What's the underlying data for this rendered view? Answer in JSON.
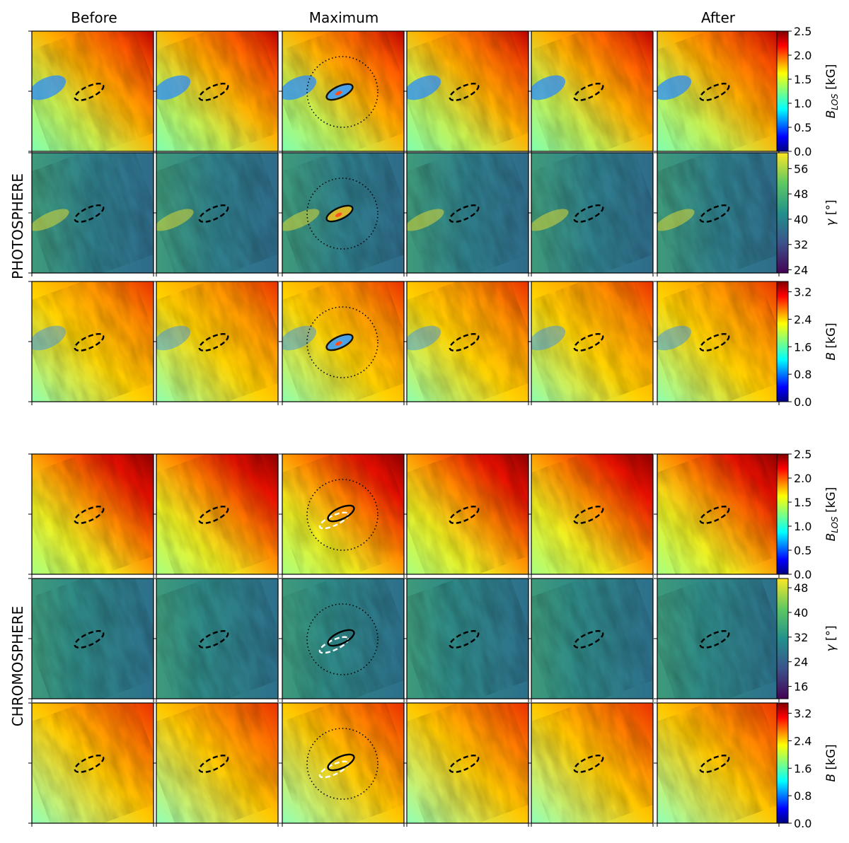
{
  "columns": {
    "before": "Before",
    "maximum": "Maximum",
    "after": "After"
  },
  "sections": [
    {
      "key": "photosphere",
      "label": "PHOTOSPHERE"
    },
    {
      "key": "chromosphere",
      "label": "CHROMOSPHERE"
    }
  ],
  "rows": [
    {
      "id": "photo-blos",
      "quantity": "B_LOS",
      "unit": "[kG]",
      "colormap": "jet",
      "ticks": [
        "0.0",
        "0.5",
        "1.0",
        "1.5",
        "2.0",
        "2.5"
      ],
      "range": [
        0,
        2.5
      ]
    },
    {
      "id": "photo-gamma",
      "quantity": "γ",
      "unit": "[°]",
      "colormap": "viridis",
      "ticks": [
        "24",
        "32",
        "40",
        "48",
        "56"
      ],
      "range": [
        23,
        61
      ]
    },
    {
      "id": "photo-b",
      "quantity": "B",
      "unit": "[kG]",
      "colormap": "jet",
      "ticks": [
        "0.0",
        "0.8",
        "1.6",
        "2.4",
        "3.2"
      ],
      "range": [
        0,
        3.5
      ]
    },
    {
      "id": "chromo-blos",
      "quantity": "B_LOS",
      "unit": "[kG]",
      "colormap": "jet",
      "ticks": [
        "0.0",
        "0.5",
        "1.0",
        "1.5",
        "2.0",
        "2.5"
      ],
      "range": [
        0,
        2.5
      ]
    },
    {
      "id": "chromo-gamma",
      "quantity": "γ",
      "unit": "[°]",
      "colormap": "viridis",
      "ticks": [
        "16",
        "24",
        "32",
        "40",
        "48"
      ],
      "range": [
        12,
        51
      ]
    },
    {
      "id": "chromo-b",
      "quantity": "B",
      "unit": "[kG]",
      "colormap": "jet",
      "ticks": [
        "0.0",
        "0.8",
        "1.6",
        "2.4",
        "3.2"
      ],
      "range": [
        0,
        3.5
      ]
    }
  ],
  "panel_count_per_row": 6,
  "maximum_panel_index": 2,
  "colors": {
    "contour": "#000000",
    "contour_chromo_overlay": "#ffffff",
    "jet_low": "#00007f",
    "jet_high": "#7f0000",
    "viridis_low": "#440154",
    "viridis_high": "#fde725"
  }
}
